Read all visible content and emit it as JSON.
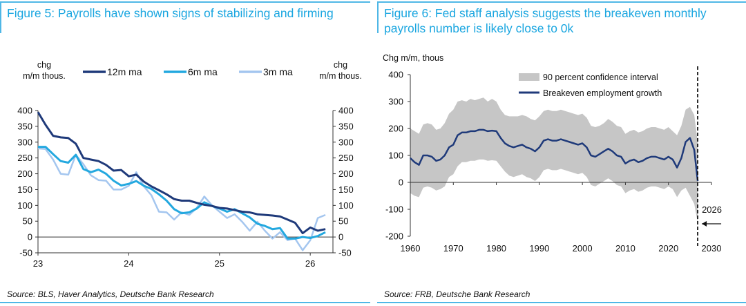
{
  "figure5": {
    "title": "Figure 5: Payrolls have shown signs of stabilizing and firming",
    "left_axis_label": [
      "chg",
      "m/m thous."
    ],
    "right_axis_label": [
      "chg",
      "m/m thous."
    ],
    "source": "Source: BLS, Haver Analytics, Deutsche Bank Research",
    "colors": {
      "s12m": "#1f3a7a",
      "s6m": "#23a8df",
      "s3m": "#a4c6ef"
    }
  },
  "figure6": {
    "title_line1": "Figure 6: Fed staff analysis suggests the breakeven monthly",
    "title_line2": "payrolls number is likely close to 0k",
    "axis_label": "Chg m/m, thous",
    "annotation": "2026",
    "source": "Source: FRB, Deutsche Bank Research",
    "colors": {
      "band": "#c6c6c6",
      "line": "#1f3a7a"
    }
  },
  "chart_data": [
    {
      "type": "line",
      "title": "Figure 5: Payrolls have shown signs of stabilizing and firming",
      "xlabel": "",
      "ylabel": "chg m/m thous.",
      "x_ticks": [
        "23",
        "24",
        "25",
        "26"
      ],
      "x_range": [
        23.0,
        26.25
      ],
      "ylim": [
        -50,
        400
      ],
      "y_ticks_left": [
        -50,
        0,
        50,
        100,
        150,
        200,
        250,
        300,
        350,
        400
      ],
      "y_ticks_right": [
        -50,
        0,
        50,
        100,
        150,
        200,
        250,
        300,
        350,
        400
      ],
      "legend": [
        "12m ma",
        "6m ma",
        "3m ma"
      ],
      "legend_position": "top",
      "x": [
        23.0,
        23.083,
        23.167,
        23.25,
        23.333,
        23.417,
        23.5,
        23.583,
        23.667,
        23.75,
        23.833,
        23.917,
        24.0,
        24.083,
        24.167,
        24.25,
        24.333,
        24.417,
        24.5,
        24.583,
        24.667,
        24.75,
        24.833,
        24.917,
        25.0,
        25.083,
        25.167,
        25.25,
        25.333,
        25.417,
        25.5,
        25.583,
        25.667,
        25.75,
        25.833,
        25.917,
        26.0,
        26.083,
        26.167
      ],
      "series": [
        {
          "name": "12m ma",
          "values": [
            395,
            355,
            320,
            315,
            313,
            295,
            250,
            245,
            240,
            228,
            210,
            212,
            192,
            197,
            175,
            160,
            148,
            135,
            120,
            115,
            115,
            108,
            102,
            98,
            92,
            90,
            85,
            80,
            78,
            72,
            70,
            68,
            65,
            55,
            45,
            12,
            30,
            20,
            25
          ]
        },
        {
          "name": "6m ma",
          "values": [
            285,
            285,
            262,
            240,
            235,
            260,
            215,
            205,
            213,
            200,
            178,
            163,
            168,
            177,
            162,
            152,
            135,
            115,
            88,
            75,
            78,
            90,
            110,
            98,
            90,
            80,
            88,
            75,
            62,
            42,
            35,
            25,
            28,
            -5,
            -5,
            0,
            -3,
            3,
            15
          ]
        },
        {
          "name": "3m ma",
          "values": [
            280,
            278,
            245,
            200,
            197,
            260,
            230,
            195,
            180,
            178,
            150,
            150,
            162,
            205,
            160,
            132,
            80,
            78,
            55,
            78,
            70,
            92,
            128,
            100,
            80,
            60,
            72,
            48,
            20,
            48,
            20,
            -5,
            15,
            -10,
            -5,
            -42,
            -10,
            60,
            70
          ]
        }
      ]
    },
    {
      "type": "area",
      "title": "Figure 6: Fed staff analysis suggests the breakeven monthly payrolls number is likely close to 0k",
      "xlabel": "",
      "ylabel": "Chg m/m, thous",
      "xlim": [
        1960,
        2030
      ],
      "ylim": [
        -200,
        400
      ],
      "x_ticks": [
        1960,
        1970,
        1980,
        1990,
        2000,
        2010,
        2020,
        2030
      ],
      "y_ticks": [
        -200,
        -100,
        0,
        100,
        200,
        300,
        400
      ],
      "legend": [
        "90 percent confidence interval",
        "Breakeven employment growth"
      ],
      "legend_position": "top-left",
      "vertical_marker": {
        "x": 2026.8,
        "label": "2026"
      },
      "x": [
        1960,
        1961,
        1962,
        1963,
        1964,
        1965,
        1966,
        1967,
        1968,
        1969,
        1970,
        1971,
        1972,
        1973,
        1974,
        1975,
        1976,
        1977,
        1978,
        1979,
        1980,
        1981,
        1982,
        1983,
        1984,
        1985,
        1986,
        1987,
        1988,
        1989,
        1990,
        1991,
        1992,
        1993,
        1994,
        1995,
        1996,
        1997,
        1998,
        1999,
        2000,
        2001,
        2002,
        2003,
        2004,
        2005,
        2006,
        2007,
        2008,
        2009,
        2010,
        2011,
        2012,
        2013,
        2014,
        2015,
        2016,
        2017,
        2018,
        2019,
        2020,
        2021,
        2022,
        2023,
        2024,
        2025,
        2026,
        2026.8
      ],
      "series": [
        {
          "name": "Breakeven employment growth",
          "values": [
            90,
            75,
            65,
            100,
            100,
            95,
            80,
            85,
            100,
            130,
            140,
            175,
            185,
            185,
            190,
            190,
            195,
            195,
            190,
            192,
            190,
            165,
            145,
            135,
            130,
            135,
            140,
            130,
            125,
            115,
            130,
            155,
            160,
            155,
            155,
            160,
            155,
            150,
            145,
            140,
            145,
            130,
            100,
            95,
            105,
            115,
            125,
            115,
            100,
            95,
            70,
            80,
            85,
            75,
            80,
            90,
            95,
            95,
            90,
            85,
            95,
            85,
            55,
            90,
            150,
            165,
            120,
            5
          ]
        },
        {
          "name": "90 percent confidence interval (lower)",
          "values": [
            -40,
            -50,
            -55,
            -20,
            -15,
            -20,
            -30,
            -25,
            -15,
            20,
            30,
            60,
            75,
            75,
            80,
            80,
            85,
            85,
            80,
            82,
            80,
            60,
            40,
            25,
            20,
            25,
            30,
            20,
            15,
            5,
            20,
            45,
            50,
            45,
            45,
            50,
            45,
            40,
            35,
            30,
            35,
            20,
            -10,
            -15,
            -5,
            5,
            15,
            5,
            -10,
            -15,
            -40,
            -30,
            -25,
            -35,
            -30,
            -20,
            -15,
            -15,
            -20,
            -25,
            -15,
            -25,
            -55,
            -30,
            -20,
            -50,
            -80,
            -150
          ]
        },
        {
          "name": "90 percent confidence interval (upper)",
          "values": [
            200,
            190,
            180,
            215,
            220,
            215,
            195,
            200,
            220,
            255,
            270,
            300,
            305,
            300,
            310,
            305,
            310,
            315,
            300,
            310,
            300,
            270,
            250,
            245,
            245,
            245,
            250,
            245,
            235,
            230,
            245,
            265,
            270,
            265,
            265,
            270,
            265,
            260,
            255,
            250,
            255,
            240,
            210,
            205,
            210,
            220,
            235,
            225,
            210,
            205,
            180,
            190,
            195,
            185,
            190,
            200,
            205,
            205,
            200,
            195,
            205,
            190,
            175,
            210,
            270,
            280,
            250,
            150
          ]
        }
      ]
    }
  ]
}
